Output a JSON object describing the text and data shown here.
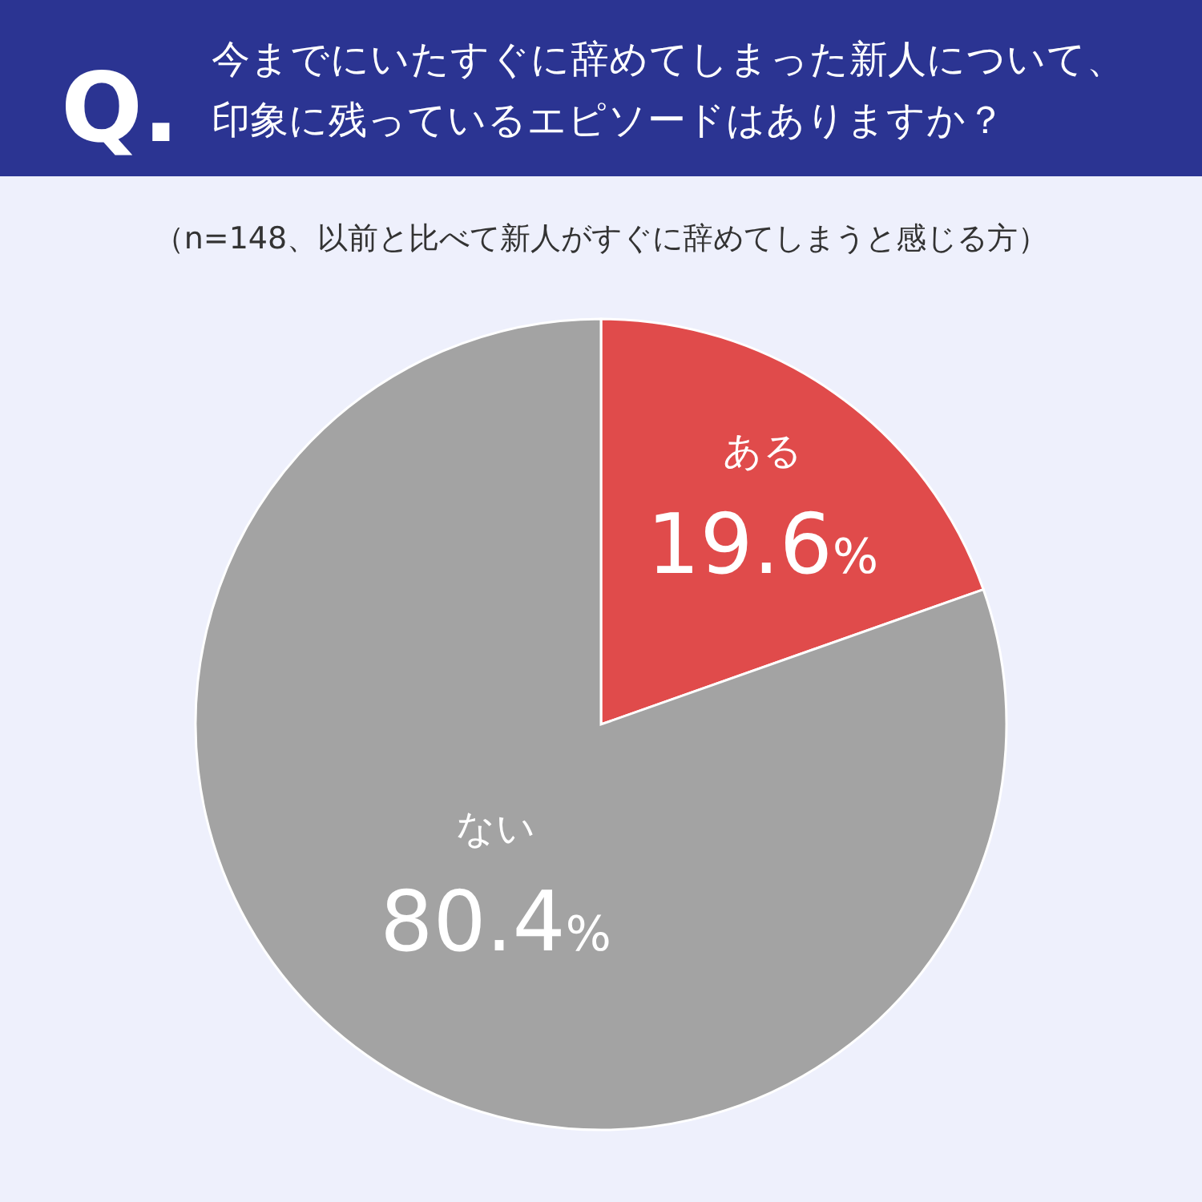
{
  "chart_data": {
    "type": "pie",
    "title": "今までにいたすぐに辞めてしまった新人について、印象に残っているエピソードはありますか？",
    "subtitle": "（n=148、以前と比べて新人がすぐに辞めてしまうと感じる方）",
    "annotations": [
      "Q."
    ],
    "categories": [
      "ある",
      "ない"
    ],
    "values": [
      19.6,
      80.4
    ],
    "colors": [
      "#e04b4b",
      "#a3a3a3"
    ],
    "value_labels": [
      "19.6%",
      "80.4%"
    ]
  }
}
